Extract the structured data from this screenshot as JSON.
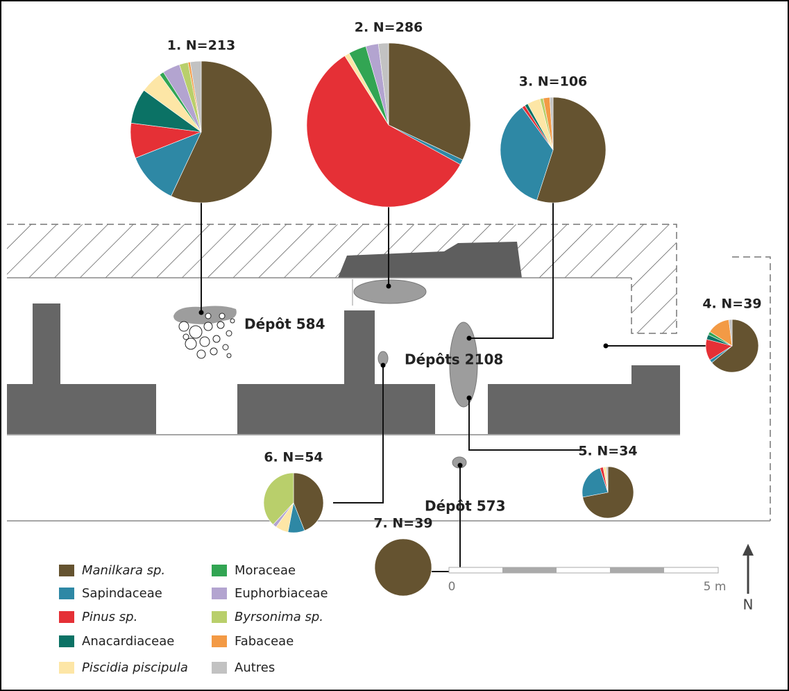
{
  "chart_data": [
    {
      "type": "pie",
      "title": "1. N=213",
      "values": [
        57,
        12,
        8,
        8,
        5,
        1,
        4,
        2,
        0.5,
        2.5
      ]
    },
    {
      "type": "pie",
      "title": "2. N=286",
      "values": [
        32,
        1,
        58,
        0,
        1,
        3.5,
        2.5,
        0,
        0,
        2
      ]
    },
    {
      "type": "pie",
      "title": "3. N=106",
      "values": [
        55,
        35,
        1,
        1,
        4,
        0,
        0,
        1,
        2,
        1
      ]
    },
    {
      "type": "pie",
      "title": "4. N=39",
      "values": [
        64,
        2,
        13,
        3,
        0,
        2,
        0,
        0,
        14,
        2
      ]
    },
    {
      "type": "pie",
      "title": "5. N=34",
      "values": [
        72,
        23,
        2,
        0,
        2,
        0,
        0,
        0,
        0,
        1
      ]
    },
    {
      "type": "pie",
      "title": "6. N=54",
      "values": [
        44,
        9,
        0,
        0,
        7,
        0,
        2,
        38,
        0,
        0
      ]
    },
    {
      "type": "pie",
      "title": "7. N=39",
      "values": [
        100,
        0,
        0,
        0,
        0,
        0,
        0,
        0,
        0,
        0
      ]
    }
  ],
  "legend": {
    "categories": [
      "Manilkara sp.",
      "Sapindaceae",
      "Pinus sp.",
      "Anacardiaceae",
      "Piscidia piscipula",
      "Moraceae",
      "Euphorbiaceae",
      "Byrsonima sp.",
      "Fabaceae",
      "Autres"
    ],
    "italic": [
      true,
      false,
      true,
      false,
      true,
      false,
      false,
      true,
      false,
      false
    ],
    "colors": [
      "#655330",
      "#2e88a5",
      "#e53036",
      "#0b7265",
      "#fde6a6",
      "#32a553",
      "#b3a4d0",
      "#b9cf6b",
      "#f39a45",
      "#c2c2c2"
    ]
  },
  "map": {
    "labels": [
      "Dépôt 584",
      "Dépôts 2108",
      "Dépôt 573"
    ],
    "north": "N",
    "scale": [
      "0",
      "5 m"
    ]
  }
}
